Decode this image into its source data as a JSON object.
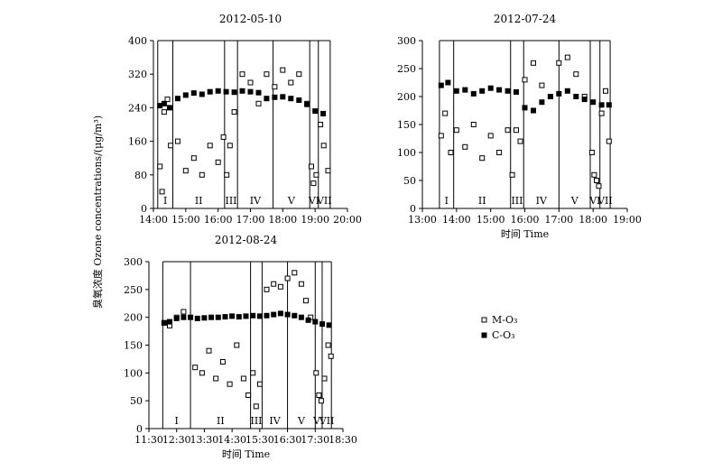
{
  "figure": {
    "y_axis_label": "臭氧浓度 Ozone concentrations/(μg/m³)",
    "x_axis_label": "时间 Time",
    "legend": [
      {
        "name": "M-O₃",
        "marker": "open-square"
      },
      {
        "name": "C-O₃",
        "marker": "filled-square"
      }
    ],
    "colors": {
      "marker": "#000000",
      "axis": "#000000",
      "background": "#ffffff"
    }
  },
  "chart_data": [
    {
      "type": "scatter",
      "title": "2012-05-10",
      "xlabel": "",
      "xlim": [
        "14:00",
        "20:00"
      ],
      "x_ticks": [
        "14:00",
        "15:00",
        "16:00",
        "17:00",
        "18:00",
        "19:00",
        "20:00"
      ],
      "ylim": [
        0,
        400
      ],
      "y_ticks": [
        0,
        80,
        160,
        240,
        320,
        400
      ],
      "period_boundaries": [
        "14:08",
        "14:36",
        "16:12",
        "16:36",
        "17:42",
        "18:50",
        "19:06",
        "19:28"
      ],
      "period_labels": [
        "I",
        "II",
        "III",
        "IV",
        "V",
        "VI",
        "VII"
      ],
      "series": [
        {
          "name": "M-O₃",
          "marker": "open-square",
          "x": [
            "14:12",
            "14:16",
            "14:20",
            "14:26",
            "14:32",
            "14:45",
            "15:00",
            "15:15",
            "15:30",
            "15:45",
            "16:00",
            "16:10",
            "16:16",
            "16:22",
            "16:30",
            "16:45",
            "17:00",
            "17:15",
            "17:30",
            "17:45",
            "18:00",
            "18:15",
            "18:30",
            "18:45",
            "18:53",
            "18:57",
            "19:02",
            "19:10",
            "19:16",
            "19:24"
          ],
          "y": [
            100,
            40,
            230,
            260,
            150,
            160,
            90,
            120,
            80,
            150,
            110,
            170,
            80,
            150,
            230,
            320,
            300,
            250,
            320,
            290,
            330,
            300,
            320,
            250,
            100,
            60,
            80,
            200,
            150,
            90
          ]
        },
        {
          "name": "C-O₃",
          "marker": "filled-square",
          "x": [
            "14:12",
            "14:20",
            "14:30",
            "14:45",
            "15:00",
            "15:15",
            "15:30",
            "15:45",
            "16:00",
            "16:15",
            "16:30",
            "16:45",
            "17:00",
            "17:15",
            "17:30",
            "17:45",
            "18:00",
            "18:15",
            "18:30",
            "18:45",
            "19:00",
            "19:15"
          ],
          "y": [
            245,
            250,
            240,
            262,
            270,
            275,
            272,
            278,
            280,
            278,
            277,
            280,
            278,
            276,
            262,
            265,
            266,
            262,
            258,
            248,
            232,
            226
          ]
        }
      ]
    },
    {
      "type": "scatter",
      "title": "2012-07-24",
      "xlabel": "时间 Time",
      "xlim": [
        "13:00",
        "19:00"
      ],
      "x_ticks": [
        "13:00",
        "14:00",
        "15:00",
        "16:00",
        "17:00",
        "18:00",
        "19:00"
      ],
      "ylim": [
        0,
        300
      ],
      "y_ticks": [
        0,
        50,
        100,
        150,
        200,
        250,
        300
      ],
      "period_boundaries": [
        "13:30",
        "13:55",
        "15:35",
        "15:58",
        "17:00",
        "17:55",
        "18:12",
        "18:30"
      ],
      "period_labels": [
        "I",
        "II",
        "III",
        "IV",
        "V",
        "VI",
        "VII"
      ],
      "series": [
        {
          "name": "M-O₃",
          "marker": "open-square",
          "x": [
            "13:33",
            "13:40",
            "13:50",
            "14:00",
            "14:15",
            "14:30",
            "14:45",
            "15:00",
            "15:15",
            "15:30",
            "15:38",
            "15:45",
            "15:52",
            "16:00",
            "16:15",
            "16:30",
            "16:45",
            "17:00",
            "17:15",
            "17:30",
            "17:45",
            "17:58",
            "18:02",
            "18:06",
            "18:10",
            "18:15",
            "18:22",
            "18:28"
          ],
          "y": [
            130,
            170,
            100,
            140,
            110,
            150,
            90,
            130,
            100,
            140,
            60,
            140,
            120,
            230,
            260,
            220,
            200,
            260,
            270,
            240,
            200,
            100,
            60,
            50,
            40,
            170,
            210,
            120
          ]
        },
        {
          "name": "C-O₃",
          "marker": "filled-square",
          "x": [
            "13:33",
            "13:45",
            "14:00",
            "14:15",
            "14:30",
            "14:45",
            "15:00",
            "15:15",
            "15:30",
            "15:45",
            "16:00",
            "16:15",
            "16:30",
            "16:45",
            "17:00",
            "17:15",
            "17:30",
            "17:45",
            "18:00",
            "18:15",
            "18:28"
          ],
          "y": [
            220,
            225,
            210,
            212,
            205,
            210,
            215,
            212,
            210,
            208,
            180,
            175,
            190,
            200,
            205,
            210,
            200,
            195,
            190,
            185,
            185
          ]
        }
      ]
    },
    {
      "type": "scatter",
      "title": "2012-08-24",
      "xlabel": "时间 Time",
      "xlim": [
        "11:30",
        "18:30"
      ],
      "x_ticks": [
        "11:30",
        "12:30",
        "13:30",
        "14:30",
        "15:30",
        "16:30",
        "17:30",
        "18:30"
      ],
      "ylim": [
        0,
        300
      ],
      "y_ticks": [
        0,
        50,
        100,
        150,
        200,
        250,
        300
      ],
      "period_boundaries": [
        "12:00",
        "13:00",
        "15:10",
        "15:35",
        "16:30",
        "17:30",
        "17:45",
        "18:05"
      ],
      "period_labels": [
        "I",
        "II",
        "III",
        "IV",
        "V",
        "VI",
        "VII"
      ],
      "series": [
        {
          "name": "M-O₃",
          "marker": "open-square",
          "x": [
            "12:03",
            "12:15",
            "12:30",
            "12:45",
            "13:10",
            "13:25",
            "13:40",
            "13:55",
            "14:10",
            "14:25",
            "14:40",
            "14:55",
            "15:05",
            "15:15",
            "15:22",
            "15:30",
            "15:45",
            "16:00",
            "16:15",
            "16:30",
            "16:45",
            "17:00",
            "17:10",
            "17:20",
            "17:32",
            "17:38",
            "17:43",
            "17:50",
            "17:58",
            "18:04"
          ],
          "y": [
            190,
            185,
            200,
            210,
            110,
            100,
            140,
            90,
            120,
            80,
            150,
            90,
            60,
            100,
            40,
            80,
            250,
            260,
            255,
            270,
            280,
            260,
            230,
            200,
            100,
            60,
            50,
            90,
            150,
            130
          ]
        },
        {
          "name": "C-O₃",
          "marker": "filled-square",
          "x": [
            "12:03",
            "12:15",
            "12:30",
            "12:45",
            "13:00",
            "13:15",
            "13:30",
            "13:45",
            "14:00",
            "14:15",
            "14:30",
            "14:45",
            "15:00",
            "15:15",
            "15:30",
            "15:45",
            "16:00",
            "16:15",
            "16:30",
            "16:45",
            "17:00",
            "17:15",
            "17:30",
            "17:45",
            "18:00"
          ],
          "y": [
            190,
            192,
            198,
            200,
            200,
            198,
            199,
            200,
            200,
            201,
            202,
            201,
            202,
            203,
            202,
            203,
            205,
            207,
            205,
            203,
            200,
            195,
            192,
            188,
            186
          ]
        }
      ]
    }
  ]
}
